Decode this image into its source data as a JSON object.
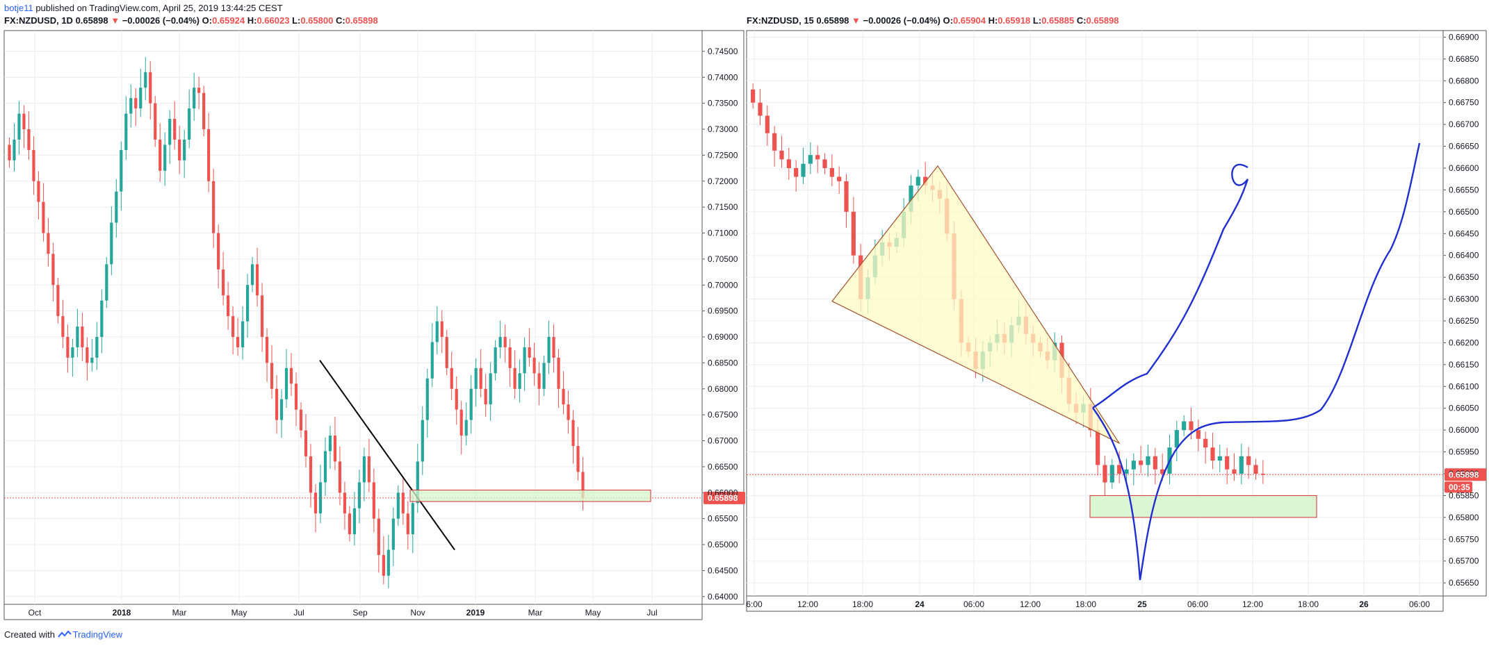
{
  "header": {
    "user": "botje11",
    "published": "published on TradingView.com, April 25, 2019 13:44:25 CEST"
  },
  "footer": {
    "created_with": "Created with",
    "brand": "TradingView"
  },
  "colors": {
    "up": "#26a69a",
    "down": "#ef5350",
    "curve": "#1f2fd0",
    "grid": "#e8edf2",
    "zone_fill": "#d6f5cc",
    "zone_border": "#d32f2f",
    "triangle_fill": "#fff9c4"
  },
  "chart_data": [
    {
      "type": "candlestick",
      "symbol": "FX:NZDUSD, 1D",
      "last": "0.65898",
      "change": "−0.00026 (−0.04%)",
      "ohlc": [
        {
          "k": "O:",
          "v": "0.65924"
        },
        {
          "k": "H:",
          "v": "0.66023"
        },
        {
          "k": "L:",
          "v": "0.65800"
        },
        {
          "k": "C:",
          "v": "0.65898"
        }
      ],
      "x_ticks": [
        "Oct",
        "2018",
        "Mar",
        "May",
        "Jul",
        "Sep",
        "Nov",
        "2019",
        "Mar",
        "May",
        "Jul"
      ],
      "y_ticks": [
        "0.74500",
        "0.74000",
        "0.73500",
        "0.73000",
        "0.72500",
        "0.72000",
        "0.71500",
        "0.71000",
        "0.70500",
        "0.70000",
        "0.69500",
        "0.69000",
        "0.68500",
        "0.68000",
        "0.67500",
        "0.67000",
        "0.66500",
        "0.66000",
        "0.65500",
        "0.65000",
        "0.64500",
        "0.64000"
      ],
      "ylim": [
        0.6385,
        0.749
      ],
      "price_label": "0.65898",
      "closes": [
        0.724,
        0.728,
        0.733,
        0.73,
        0.726,
        0.72,
        0.716,
        0.71,
        0.706,
        0.7,
        0.694,
        0.69,
        0.686,
        0.688,
        0.692,
        0.688,
        0.685,
        0.686,
        0.69,
        0.697,
        0.704,
        0.712,
        0.718,
        0.726,
        0.733,
        0.736,
        0.734,
        0.738,
        0.741,
        0.735,
        0.728,
        0.722,
        0.727,
        0.732,
        0.728,
        0.724,
        0.728,
        0.734,
        0.738,
        0.737,
        0.73,
        0.72,
        0.71,
        0.703,
        0.698,
        0.694,
        0.69,
        0.688,
        0.693,
        0.7,
        0.704,
        0.698,
        0.69,
        0.685,
        0.68,
        0.674,
        0.678,
        0.684,
        0.681,
        0.676,
        0.672,
        0.667,
        0.66,
        0.656,
        0.662,
        0.668,
        0.671,
        0.666,
        0.66,
        0.656,
        0.652,
        0.657,
        0.662,
        0.667,
        0.662,
        0.655,
        0.648,
        0.644,
        0.649,
        0.655,
        0.66,
        0.656,
        0.652,
        0.658,
        0.666,
        0.674,
        0.682,
        0.689,
        0.693,
        0.69,
        0.684,
        0.68,
        0.676,
        0.671,
        0.674,
        0.68,
        0.684,
        0.68,
        0.677,
        0.683,
        0.688,
        0.69,
        0.688,
        0.684,
        0.68,
        0.683,
        0.688,
        0.686,
        0.683,
        0.68,
        0.685,
        0.69,
        0.686,
        0.68,
        0.677,
        0.674,
        0.669,
        0.664,
        0.659
      ],
      "annotations": {
        "trendline": {
          "from": [
            0.6855
          ],
          "to": [
            0.649
          ]
        },
        "support_zone": [
          0.6583,
          0.6605
        ]
      }
    },
    {
      "type": "candlestick",
      "symbol": "FX:NZDUSD, 15",
      "last": "0.65898",
      "change": "−0.00026 (−0.04%)",
      "ohlc": [
        {
          "k": "O:",
          "v": "0.65904"
        },
        {
          "k": "H:",
          "v": "0.65918"
        },
        {
          "k": "L:",
          "v": "0.65885"
        },
        {
          "k": "C:",
          "v": "0.65898"
        }
      ],
      "x_ticks": [
        "6:00",
        "12:00",
        "18:00",
        "24",
        "06:00",
        "12:00",
        "18:00",
        "25",
        "06:00",
        "12:00",
        "18:00",
        "26",
        "06:00"
      ],
      "y_ticks": [
        "0.66900",
        "0.66850",
        "0.66800",
        "0.66750",
        "0.66700",
        "0.66650",
        "0.66600",
        "0.66550",
        "0.66500",
        "0.66450",
        "0.66400",
        "0.66350",
        "0.66300",
        "0.66250",
        "0.66200",
        "0.66150",
        "0.66100",
        "0.66050",
        "0.66000",
        "0.65950",
        "0.65900",
        "0.65850",
        "0.65800",
        "0.65750",
        "0.65700",
        "0.65650"
      ],
      "ylim": [
        0.6562,
        0.66915
      ],
      "price_label": "0.65898",
      "timer_label": "00:35",
      "closes": [
        0.6675,
        0.6672,
        0.6668,
        0.6664,
        0.6662,
        0.666,
        0.6658,
        0.6661,
        0.6663,
        0.6662,
        0.666,
        0.6658,
        0.6657,
        0.665,
        0.664,
        0.663,
        0.6635,
        0.664,
        0.6643,
        0.6642,
        0.6644,
        0.665,
        0.6656,
        0.6658,
        0.6656,
        0.6655,
        0.6653,
        0.6645,
        0.663,
        0.662,
        0.6618,
        0.6614,
        0.6618,
        0.662,
        0.6622,
        0.662,
        0.6624,
        0.6626,
        0.6622,
        0.662,
        0.6618,
        0.6616,
        0.662,
        0.6612,
        0.6606,
        0.6604,
        0.6606,
        0.66,
        0.6592,
        0.6588,
        0.6592,
        0.659,
        0.6591,
        0.6593,
        0.6592,
        0.6594,
        0.6591,
        0.659,
        0.6596,
        0.66,
        0.6602,
        0.66,
        0.6598,
        0.6596,
        0.6593,
        0.6594,
        0.6591,
        0.659,
        0.6594,
        0.6592,
        0.659,
        0.65898
      ],
      "annotations": {
        "triangle": true,
        "support_zone": [
          0.658,
          0.6585
        ],
        "projection_curves": 2
      }
    }
  ]
}
